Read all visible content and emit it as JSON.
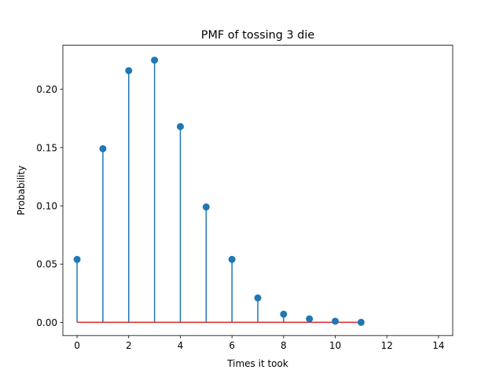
{
  "chart_data": {
    "type": "stem",
    "title": "PMF of tossing 3 die",
    "xlabel": "Times it took",
    "ylabel": "Probability",
    "xlim": [
      -0.55,
      14.55
    ],
    "ylim": [
      -0.0113,
      0.2378
    ],
    "xticks": [
      0,
      2,
      4,
      6,
      8,
      10,
      12,
      14
    ],
    "yticks": [
      0.0,
      0.05,
      0.1,
      0.15,
      0.2
    ],
    "ytick_labels": [
      "0.00",
      "0.05",
      "0.10",
      "0.15",
      "0.20"
    ],
    "series": [
      {
        "x": [
          0,
          1,
          2,
          3,
          4,
          5,
          6,
          7,
          8,
          9,
          10,
          11
        ],
        "values": [
          0.054,
          0.149,
          0.216,
          0.225,
          0.168,
          0.099,
          0.054,
          0.021,
          0.007,
          0.003,
          0.001,
          0.0
        ]
      }
    ],
    "baseline": {
      "value": 0,
      "from": 0,
      "to": 11
    },
    "colors": {
      "stem": "#1f77b4",
      "marker": "#1f77b4",
      "baseline": "#d62728"
    },
    "grid": false
  }
}
